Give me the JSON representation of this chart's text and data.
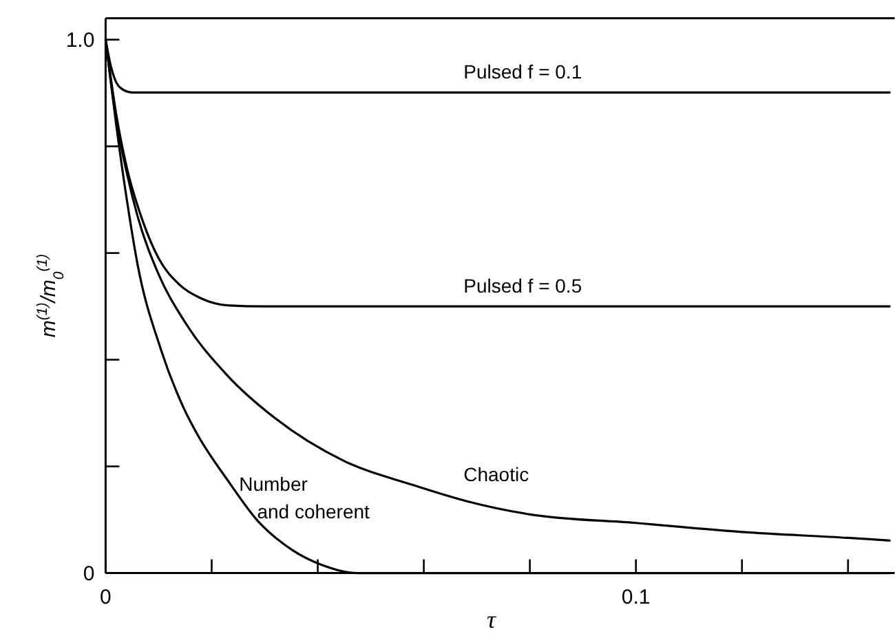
{
  "chart_data": {
    "type": "line",
    "xlabel": "τ",
    "ylabel": "m$^{(1)}$/m$_{0}$$^{(1)}$",
    "xlim": [
      0,
      0.148
    ],
    "ylim": [
      0,
      1.04
    ],
    "xticks": [
      {
        "value": 0,
        "label": "0"
      },
      {
        "value": 0.02,
        "label": null
      },
      {
        "value": 0.04,
        "label": null
      },
      {
        "value": 0.06,
        "label": null
      },
      {
        "value": 0.08,
        "label": null
      },
      {
        "value": 0.1,
        "label": "0.1"
      },
      {
        "value": 0.12,
        "label": null
      },
      {
        "value": 0.14,
        "label": null
      }
    ],
    "yticks": [
      {
        "value": 0,
        "label": "0"
      },
      {
        "value": 0.2,
        "label": null
      },
      {
        "value": 0.4,
        "label": null
      },
      {
        "value": 0.6,
        "label": null
      },
      {
        "value": 0.8,
        "label": null
      },
      {
        "value": 1,
        "label": "1.0"
      }
    ],
    "grid": false,
    "marker": "none",
    "line_style": "solid",
    "series": [
      {
        "name": "Pulsed f = 0.1",
        "color": "#000000",
        "x": [
          0,
          0.001,
          0.002,
          0.003,
          0.005,
          0.148
        ],
        "values": [
          1,
          0.95,
          0.92,
          0.908,
          0.901,
          0.901
        ]
      },
      {
        "name": "Pulsed f = 0.5",
        "color": "#000000",
        "x": [
          0,
          0.002,
          0.004,
          0.007,
          0.01,
          0.014,
          0.018,
          0.023,
          0.03,
          0.148
        ],
        "values": [
          1,
          0.86,
          0.76,
          0.66,
          0.59,
          0.54,
          0.515,
          0.502,
          0.5,
          0.5
        ]
      },
      {
        "name": "Chaotic",
        "color": "#000000",
        "x": [
          0,
          0.001,
          0.002,
          0.004,
          0.006,
          0.01,
          0.015,
          0.023,
          0.032,
          0.045,
          0.058,
          0.068,
          0.08,
          0.1,
          0.12,
          0.14,
          0.148
        ],
        "values": [
          1,
          0.92,
          0.85,
          0.75,
          0.67,
          0.56,
          0.47,
          0.37,
          0.29,
          0.21,
          0.165,
          0.135,
          0.11,
          0.094,
          0.077,
          0.066,
          0.061
        ]
      },
      {
        "name": "Number and coherent",
        "color": "#000000",
        "x": [
          0,
          0.002,
          0.004,
          0.006,
          0.0104,
          0.0147,
          0.0173,
          0.0233,
          0.0285,
          0.0354,
          0.0406,
          0.0475,
          0.148
        ],
        "values": [
          1,
          0.84,
          0.7,
          0.58,
          0.42,
          0.31,
          0.26,
          0.17,
          0.1,
          0.042,
          0.016,
          0,
          0
        ]
      }
    ]
  }
}
